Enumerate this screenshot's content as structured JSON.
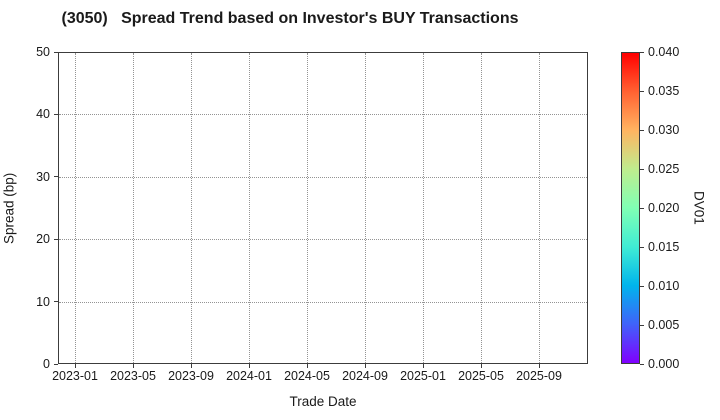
{
  "chart_data": {
    "type": "scatter",
    "title": "(3050)   Spread Trend based on Investor's BUY Transactions",
    "xlabel": "Trade Date",
    "ylabel": "Spread (bp)",
    "x_tick_labels": [
      "2023-01",
      "2023-05",
      "2023-09",
      "2024-01",
      "2024-05",
      "2024-09",
      "2025-01",
      "2025-05",
      "2025-09"
    ],
    "y_ticks": [
      0,
      10,
      20,
      30,
      40,
      50
    ],
    "ylim": [
      0,
      50
    ],
    "grid": "dotted both axes",
    "legend_position": "none",
    "series": [
      {
        "name": "buy-transaction-spreads",
        "points": []
      }
    ],
    "colorbar": {
      "label": "DV01",
      "ticks": [
        "0.000",
        "0.005",
        "0.010",
        "0.015",
        "0.020",
        "0.025",
        "0.030",
        "0.035",
        "0.040"
      ],
      "range": [
        0.0,
        0.04
      ],
      "colormap": "rainbow",
      "gradient_stops": [
        "#8000FF",
        "#4062FA",
        "#00B4EC",
        "#40ECD4",
        "#80FFB4",
        "#BFEC8E",
        "#FFB461",
        "#FF6232",
        "#FF0000"
      ]
    },
    "colors": {
      "background": "#ffffff",
      "axis": "#3c3c3c",
      "grid": "#949494",
      "text": "#1a1a1a"
    }
  }
}
